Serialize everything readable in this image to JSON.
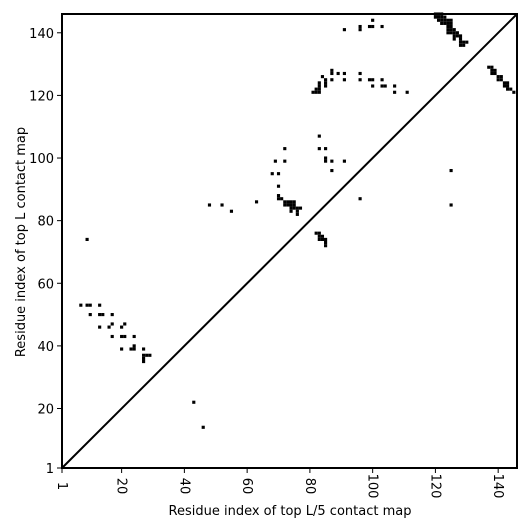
{
  "chart_data": {
    "type": "scatter",
    "title": "",
    "xlabel": "Residue index of top L/5 contact map",
    "ylabel": "Residue index of top L contact map",
    "xlim": [
      1,
      146
    ],
    "ylim": [
      1,
      146
    ],
    "grid": false,
    "legend": "none",
    "marker": "square",
    "marker_color": "#000000",
    "diagonal": {
      "from": [
        1,
        1
      ],
      "to": [
        146,
        146
      ],
      "color": "#000000"
    },
    "x_ticks": [
      {
        "value": 1,
        "label": "1"
      },
      {
        "value": 20,
        "label": "20"
      },
      {
        "value": 40,
        "label": "40"
      },
      {
        "value": 60,
        "label": "60"
      },
      {
        "value": 80,
        "label": "80"
      },
      {
        "value": 100,
        "label": "100"
      },
      {
        "value": 120,
        "label": "120"
      },
      {
        "value": 140,
        "label": "140"
      }
    ],
    "y_ticks": [
      {
        "value": 1,
        "label": "1"
      },
      {
        "value": 20,
        "label": "20"
      },
      {
        "value": 40,
        "label": "40"
      },
      {
        "value": 60,
        "label": "60"
      },
      {
        "value": 80,
        "label": "80"
      },
      {
        "value": 100,
        "label": "100"
      },
      {
        "value": 120,
        "label": "120"
      },
      {
        "value": 140,
        "label": "140"
      }
    ],
    "points": [
      [
        7,
        53
      ],
      [
        9,
        53
      ],
      [
        10,
        53
      ],
      [
        10,
        50
      ],
      [
        13,
        53
      ],
      [
        13,
        50
      ],
      [
        14,
        50
      ],
      [
        13,
        46
      ],
      [
        16,
        46
      ],
      [
        17,
        47
      ],
      [
        17,
        50
      ],
      [
        17,
        43
      ],
      [
        20,
        46
      ],
      [
        21,
        47
      ],
      [
        20,
        43
      ],
      [
        21,
        43
      ],
      [
        20,
        39
      ],
      [
        23,
        39
      ],
      [
        24,
        40
      ],
      [
        24,
        43
      ],
      [
        24,
        39
      ],
      [
        27,
        39
      ],
      [
        27,
        37
      ],
      [
        28,
        37
      ],
      [
        29,
        37
      ],
      [
        27,
        36
      ],
      [
        27,
        35
      ],
      [
        9,
        74
      ],
      [
        43,
        22
      ],
      [
        46,
        14
      ],
      [
        48,
        85
      ],
      [
        52,
        85
      ],
      [
        55,
        83
      ],
      [
        63,
        86
      ],
      [
        68,
        95
      ],
      [
        69,
        99
      ],
      [
        70,
        95
      ],
      [
        70,
        91
      ],
      [
        70,
        88
      ],
      [
        70,
        87
      ],
      [
        72,
        103
      ],
      [
        72,
        99
      ],
      [
        71,
        87
      ],
      [
        72,
        86
      ],
      [
        73,
        86
      ],
      [
        74,
        86
      ],
      [
        75,
        86
      ],
      [
        72,
        85
      ],
      [
        73,
        85
      ],
      [
        74,
        85
      ],
      [
        75,
        85
      ],
      [
        74,
        84
      ],
      [
        75,
        84
      ],
      [
        76,
        84
      ],
      [
        77,
        84
      ],
      [
        74,
        83
      ],
      [
        76,
        83
      ],
      [
        76,
        82
      ],
      [
        82,
        76
      ],
      [
        83,
        76
      ],
      [
        83,
        75
      ],
      [
        84,
        75
      ],
      [
        83,
        74
      ],
      [
        84,
        74
      ],
      [
        85,
        74
      ],
      [
        85,
        73
      ],
      [
        85,
        72
      ],
      [
        83,
        107
      ],
      [
        83,
        103
      ],
      [
        85,
        103
      ],
      [
        85,
        100
      ],
      [
        85,
        99
      ],
      [
        87,
        99
      ],
      [
        91,
        99
      ],
      [
        87,
        96
      ],
      [
        96,
        87
      ],
      [
        81,
        121
      ],
      [
        82,
        121
      ],
      [
        83,
        121
      ],
      [
        82,
        122
      ],
      [
        83,
        122
      ],
      [
        83,
        123
      ],
      [
        83,
        124
      ],
      [
        85,
        124
      ],
      [
        85,
        123
      ],
      [
        85,
        125
      ],
      [
        84,
        126
      ],
      [
        87,
        125
      ],
      [
        87,
        127
      ],
      [
        87,
        128
      ],
      [
        89,
        127
      ],
      [
        91,
        127
      ],
      [
        91,
        125
      ],
      [
        96,
        127
      ],
      [
        96,
        125
      ],
      [
        99,
        125
      ],
      [
        100,
        125
      ],
      [
        100,
        123
      ],
      [
        103,
        123
      ],
      [
        104,
        123
      ],
      [
        103,
        125
      ],
      [
        107,
        123
      ],
      [
        107,
        121
      ],
      [
        111,
        121
      ],
      [
        91,
        141
      ],
      [
        96,
        141
      ],
      [
        96,
        142
      ],
      [
        99,
        142
      ],
      [
        100,
        142
      ],
      [
        100,
        144
      ],
      [
        103,
        142
      ],
      [
        125,
        96
      ],
      [
        125,
        85
      ],
      [
        120,
        146
      ],
      [
        121,
        146
      ],
      [
        122,
        146
      ],
      [
        120,
        145
      ],
      [
        121,
        145
      ],
      [
        122,
        145
      ],
      [
        123,
        145
      ],
      [
        121,
        144
      ],
      [
        122,
        144
      ],
      [
        123,
        144
      ],
      [
        124,
        144
      ],
      [
        125,
        144
      ],
      [
        122,
        143
      ],
      [
        123,
        143
      ],
      [
        124,
        143
      ],
      [
        125,
        143
      ],
      [
        124,
        142
      ],
      [
        125,
        142
      ],
      [
        124,
        141
      ],
      [
        125,
        141
      ],
      [
        126,
        141
      ],
      [
        124,
        140
      ],
      [
        125,
        140
      ],
      [
        126,
        140
      ],
      [
        127,
        140
      ],
      [
        126,
        139
      ],
      [
        127,
        139
      ],
      [
        128,
        139
      ],
      [
        126,
        138
      ],
      [
        128,
        138
      ],
      [
        128,
        137
      ],
      [
        129,
        137
      ],
      [
        130,
        137
      ],
      [
        128,
        136
      ],
      [
        129,
        136
      ],
      [
        137,
        129
      ],
      [
        138,
        129
      ],
      [
        138,
        128
      ],
      [
        139,
        128
      ],
      [
        138,
        127
      ],
      [
        139,
        127
      ],
      [
        140,
        126
      ],
      [
        141,
        126
      ],
      [
        140,
        125
      ],
      [
        141,
        125
      ],
      [
        142,
        124
      ],
      [
        143,
        124
      ],
      [
        142,
        123
      ],
      [
        143,
        123
      ],
      [
        143,
        122
      ],
      [
        144,
        122
      ],
      [
        145,
        121
      ]
    ]
  }
}
